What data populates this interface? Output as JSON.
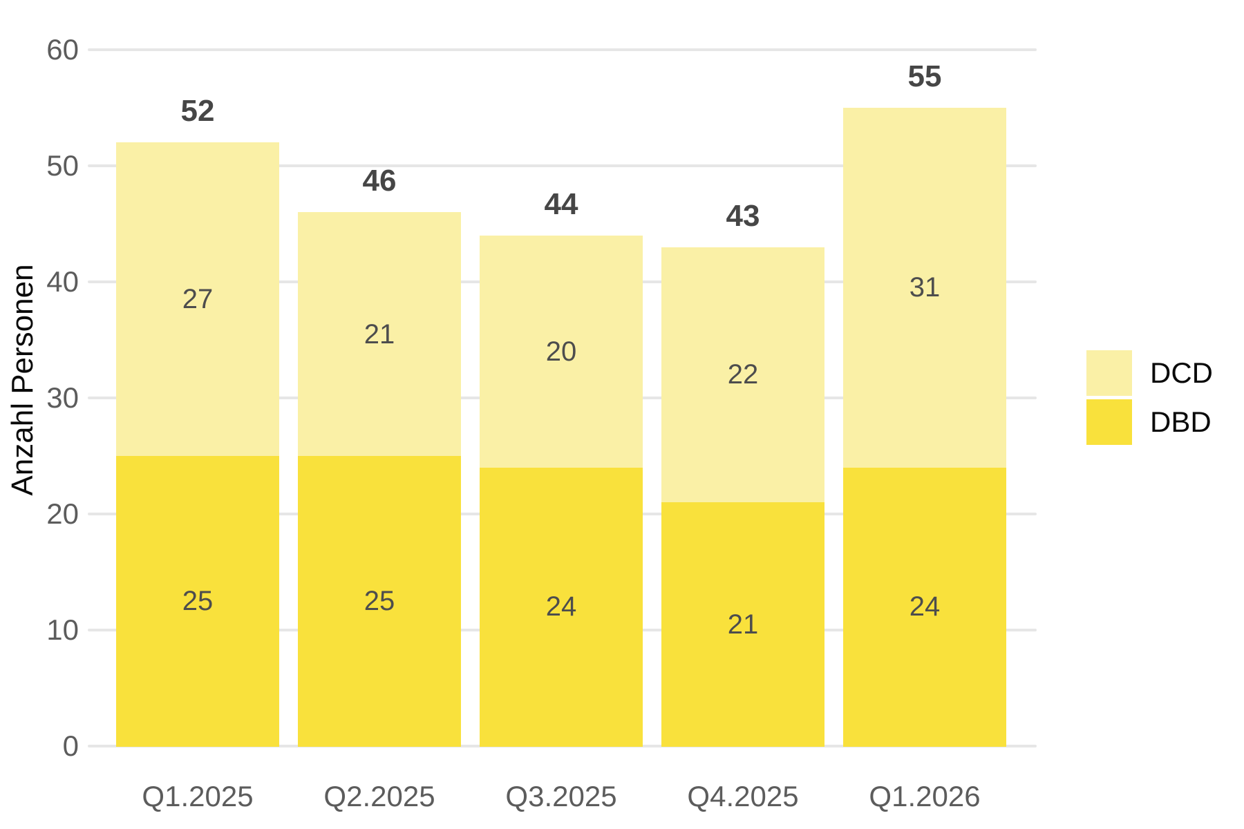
{
  "chart_data": {
    "type": "bar",
    "stacked": true,
    "title": "",
    "xlabel": "",
    "ylabel": "Anzahl Personen",
    "categories": [
      "Q1.2025",
      "Q2.2025",
      "Q3.2025",
      "Q4.2025",
      "Q1.2026"
    ],
    "series": [
      {
        "name": "DCD",
        "color": "#faf0a6",
        "values": [
          27,
          21,
          20,
          22,
          31
        ]
      },
      {
        "name": "DBD",
        "color": "#f9e13c",
        "values": [
          25,
          25,
          24,
          21,
          24
        ]
      }
    ],
    "totals": [
      52,
      46,
      44,
      43,
      55
    ],
    "ylim": [
      0,
      60
    ],
    "yticks": [
      0,
      10,
      20,
      30,
      40,
      50,
      60
    ],
    "grid": true,
    "legend_position": "right",
    "bar_value_labels": "inside-segment-center",
    "total_labels": "above-bar"
  },
  "colors": {
    "background": "#ffffff",
    "gridline": "#e6e6e6",
    "axis_text": "#5c5c5c",
    "value_label_text": "#4d4d4d",
    "total_label_text": "#464646",
    "legend_text": "#0a0a0a"
  }
}
